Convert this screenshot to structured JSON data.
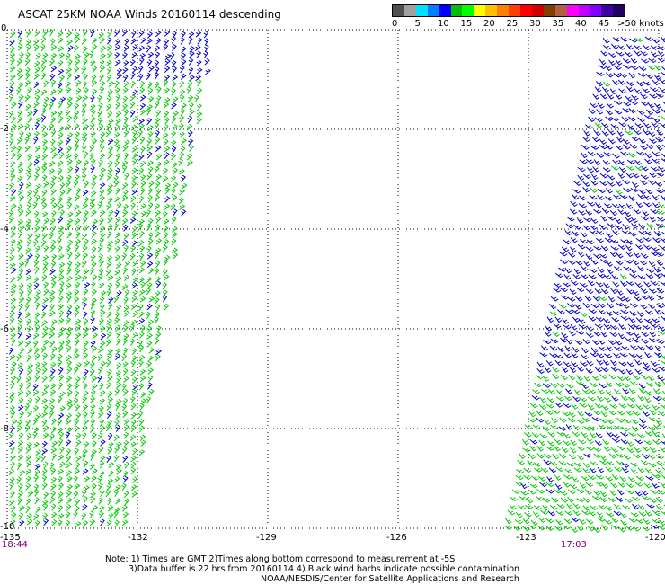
{
  "header": {
    "title": "ASCAT 25KM NOAA Winds 20160114 descending"
  },
  "colorbar": {
    "colors": [
      "#505050",
      "#a0a0a0",
      "#00e0ff",
      "#0080ff",
      "#0000ff",
      "#00c000",
      "#00ff00",
      "#ffff00",
      "#ffc000",
      "#ff8000",
      "#ff4000",
      "#ff0000",
      "#d00000",
      "#804000",
      "#b06040",
      "#ff00ff",
      "#c000ff",
      "#8000ff",
      "#4000a0",
      "#200060"
    ],
    "labels": [
      "0",
      "5",
      "10",
      "15",
      "20",
      "25",
      "30",
      "35",
      "40",
      "45"
    ],
    "unit": ">50 knots"
  },
  "axes": {
    "y_labels": [
      "0",
      "-2",
      "-4",
      "-6",
      "-8",
      "-10"
    ],
    "x_labels": [
      "-135",
      "-132",
      "-129",
      "-126",
      "-123",
      "-120"
    ]
  },
  "times": {
    "left": "18:44",
    "right": "17:03"
  },
  "notes": {
    "line1": "Note: 1) Times are GMT 2)Times along bottom correspond to measurement at -5S",
    "line2": "3)Data buffer is 22 hrs from 20160114 4) Black wind barbs indicate possible contamination",
    "line3": "NOAA/NESDIS/Center for Satellite Applications and Research"
  },
  "swaths": {
    "left_color_split": {
      "green": "#00cc00",
      "blue": "#0000cc"
    },
    "right_color_split": {
      "green": "#00cc00",
      "blue": "#0000cc"
    }
  }
}
